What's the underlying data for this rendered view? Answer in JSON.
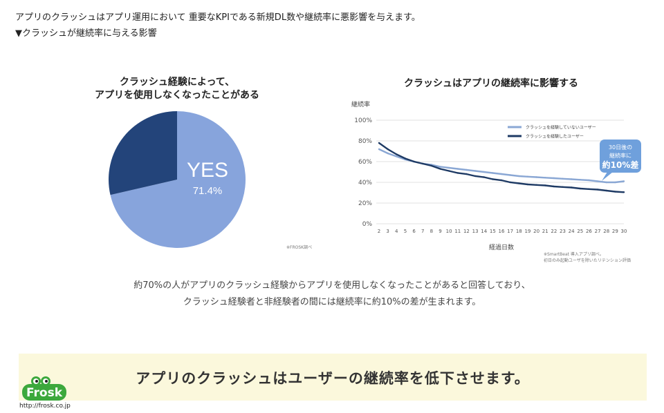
{
  "intro": {
    "line1": "アプリのクラッシュはアプリ運用において 重要なKPIである新規DL数や継続率に悪影響を与えます。",
    "line2": "▼クラッシュが継続率に与える影響"
  },
  "summary": {
    "line1": "約70%の人がアプリのクラッシュ経験からアプリを使用しなくなったことがあると回答しており、",
    "line2": "クラッシュ経験者と非経験者の間には継続率に約10%の差が生まれます。"
  },
  "banner": {
    "text": "アプリのクラッシュはユーザーの継続率を低下させます。"
  },
  "logo": {
    "name": "Frosk",
    "url": "http://frosk.co.jp"
  },
  "colors": {
    "light_blue": "#87a4dc",
    "navy": "#23447a",
    "line_light": "#8aa7d4",
    "line_dark": "#1e3a64",
    "callout": "#6fa0dc",
    "banner_bg": "#fbf8dc",
    "logo_green": "#3ca83c"
  },
  "chart_data": [
    {
      "type": "pie",
      "title_lines": [
        "クラッシュ経験によって、",
        "アプリを使用しなくなったことがある"
      ],
      "slices": [
        {
          "label": "YES",
          "value": 71.4,
          "value_label": "71.4%",
          "color": "#87a4dc"
        },
        {
          "label": "",
          "value": 28.6,
          "color": "#23447a"
        }
      ],
      "source": "※FROSK調べ"
    },
    {
      "type": "line",
      "title": "クラッシュはアプリの継続率に影響する",
      "ylabel": "継続率",
      "xlabel": "経過日数",
      "ylim": [
        0,
        100
      ],
      "yticks": [
        0,
        20,
        40,
        60,
        80,
        100
      ],
      "yticklabels": [
        "0%",
        "20%",
        "40%",
        "60%",
        "80%",
        "100%"
      ],
      "grid": true,
      "legend_position": "top-right",
      "x": [
        2,
        3,
        4,
        5,
        6,
        7,
        8,
        9,
        10,
        11,
        12,
        13,
        14,
        15,
        16,
        17,
        18,
        19,
        20,
        21,
        22,
        23,
        24,
        25,
        26,
        27,
        28,
        29,
        30
      ],
      "series": [
        {
          "name": "クラッシュを経験していないユーザー",
          "color": "#8aa7d4",
          "values": [
            72,
            68,
            65,
            62,
            60,
            58,
            57,
            55,
            54,
            53,
            52,
            51,
            50,
            49,
            48,
            47,
            46,
            45.5,
            45,
            44.5,
            44,
            43.5,
            43,
            42.5,
            42,
            41,
            40,
            40,
            41
          ]
        },
        {
          "name": "クラッシュを経験したユーザー",
          "color": "#1e3a64",
          "values": [
            78,
            72,
            67,
            63,
            60,
            58,
            56,
            53,
            51,
            49,
            48,
            46,
            45,
            43,
            42,
            40,
            39,
            38,
            37.5,
            37,
            36,
            35.5,
            35,
            34,
            33.5,
            33,
            32,
            31,
            30.5
          ]
        }
      ],
      "callout": {
        "lines": [
          "30日後の",
          "継続率に"
        ],
        "emphasis": "約10%差",
        "x": 30
      },
      "source_lines": [
        "※SmartBeat 導入アプリ調べ。",
        "初日のみ起動ユーザを除いたリテンション評価"
      ]
    }
  ]
}
